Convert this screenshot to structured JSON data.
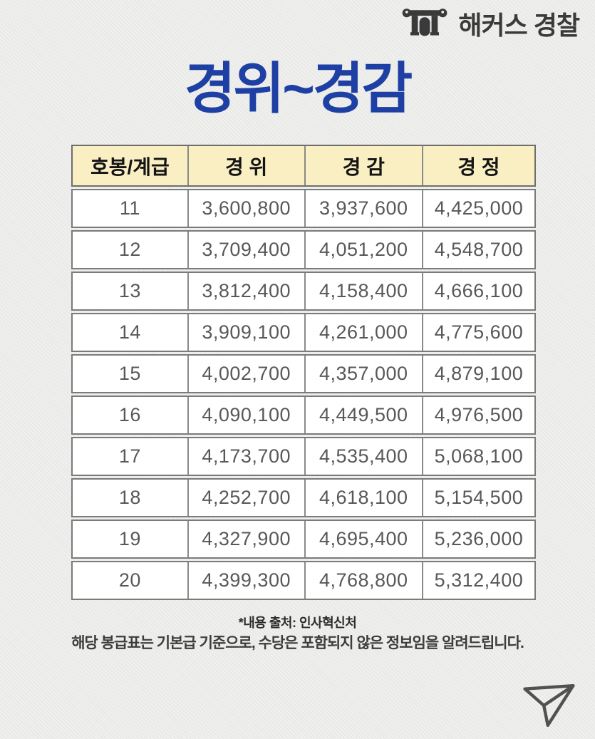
{
  "brand": {
    "logo_text": "해커스 경찰",
    "icon": "hackers-gate-icon",
    "text_color": "#3a3a3a"
  },
  "chart_data": {
    "type": "table",
    "title": "경위~경감",
    "columns": [
      "호봉/계급",
      "경 위",
      "경 감",
      "경 정"
    ],
    "rows": [
      [
        "11",
        "3,600,800",
        "3,937,600",
        "4,425,000"
      ],
      [
        "12",
        "3,709,400",
        "4,051,200",
        "4,548,700"
      ],
      [
        "13",
        "3,812,400",
        "4,158,400",
        "4,666,100"
      ],
      [
        "14",
        "3,909,100",
        "4,261,000",
        "4,775,600"
      ],
      [
        "15",
        "4,002,700",
        "4,357,000",
        "4,879,100"
      ],
      [
        "16",
        "4,090,100",
        "4,449,500",
        "4,976,500"
      ],
      [
        "17",
        "4,173,700",
        "4,535,400",
        "5,068,100"
      ],
      [
        "18",
        "4,252,700",
        "4,618,100",
        "5,154,500"
      ],
      [
        "19",
        "4,327,900",
        "4,695,400",
        "5,236,000"
      ],
      [
        "20",
        "4,399,300",
        "4,768,800",
        "5,312,400"
      ]
    ],
    "layout_hints": {
      "header_background": "#f9efc3",
      "row_background": "#ffffff",
      "border_color": "#6e6e6e",
      "value_unit": "KRW monthly base salary"
    }
  },
  "footer": {
    "source_note": "*내용 출처: 인사혁신처",
    "disclaimer": "해당 봉급표는 기본급 기준으로, 수당은 포함되지 않은 정보임을 알려드립니다."
  },
  "icons": {
    "share": "paper-plane-share-icon"
  },
  "colors": {
    "title_blue": "#1e3fa3",
    "page_background": "#ececea",
    "table_text": "#58585a",
    "header_text": "#141414"
  }
}
